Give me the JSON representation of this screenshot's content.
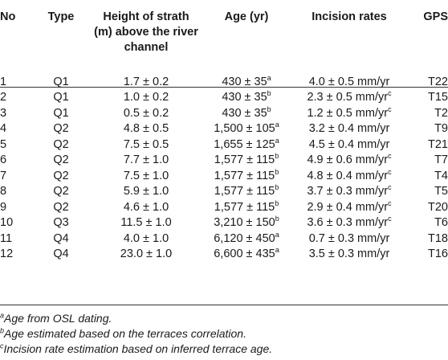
{
  "headers": {
    "no": "No",
    "type": "Type",
    "height": "Height of strath (m) above the river channel",
    "age": "Age (yr)",
    "incision": "Incision rates",
    "gps": "GPS"
  },
  "rows": [
    {
      "no": "1",
      "type": "Q1",
      "height": "1.7 ± 0.2",
      "age": "430 ± 35",
      "age_sup": "a",
      "incision": "4.0 ± 0.5 mm/yr",
      "inc_sup": "",
      "gps": "T22"
    },
    {
      "no": "2",
      "type": "Q1",
      "height": "1.0 ± 0.2",
      "age": "430 ± 35",
      "age_sup": "b",
      "incision": "2.3 ± 0.5 mm/yr",
      "inc_sup": "c",
      "gps": "T15"
    },
    {
      "no": "3",
      "type": "Q1",
      "height": "0.5 ± 0.2",
      "age": "430 ± 35",
      "age_sup": "b",
      "incision": "1.2 ± 0.5 mm/yr",
      "inc_sup": "c",
      "gps": "T2"
    },
    {
      "no": "4",
      "type": "Q2",
      "height": "4.8 ± 0.5",
      "age": "1,500 ± 105",
      "age_sup": "a",
      "incision": "3.2 ± 0.4 mm/yr",
      "inc_sup": "",
      "gps": "T9"
    },
    {
      "no": "5",
      "type": "Q2",
      "height": "7.5 ± 0.5",
      "age": "1,655 ± 125",
      "age_sup": "a",
      "incision": "4.5 ± 0.4 mm/yr",
      "inc_sup": "",
      "gps": "T21"
    },
    {
      "no": "6",
      "type": "Q2",
      "height": "7.7 ± 1.0",
      "age": "1,577 ± 115",
      "age_sup": "b",
      "incision": "4.9 ± 0.6 mm/yr",
      "inc_sup": "c",
      "gps": "T7"
    },
    {
      "no": "7",
      "type": "Q2",
      "height": "7.5 ± 1.0",
      "age": "1,577 ± 115",
      "age_sup": "b",
      "incision": "4.8 ± 0.4 mm/yr",
      "inc_sup": "c",
      "gps": "T4"
    },
    {
      "no": "8",
      "type": "Q2",
      "height": "5.9 ± 1.0",
      "age": "1,577 ± 115",
      "age_sup": "b",
      "incision": "3.7 ± 0.3 mm/yr",
      "inc_sup": "c",
      "gps": "T5"
    },
    {
      "no": "9",
      "type": "Q2",
      "height": "4.6 ± 1.0",
      "age": "1,577 ± 115",
      "age_sup": "b",
      "incision": "2.9 ± 0.4 mm/yr",
      "inc_sup": "c",
      "gps": "T20"
    },
    {
      "no": "10",
      "type": "Q3",
      "height": "11.5 ± 1.0",
      "age": "3,210 ± 150",
      "age_sup": "b",
      "incision": "3.6 ± 0.3 mm/yr",
      "inc_sup": "c",
      "gps": "T6"
    },
    {
      "no": "11",
      "type": "Q4",
      "height": "4.0 ± 1.0",
      "age": "6,120 ± 450",
      "age_sup": "a",
      "incision": "0.7 ± 0.3 mm/yr",
      "inc_sup": "",
      "gps": "T18"
    },
    {
      "no": "12",
      "type": "Q4",
      "height": "23.0 ± 1.0",
      "age": "6,600 ± 435",
      "age_sup": "a",
      "incision": "3.5 ± 0.3 mm/yr",
      "inc_sup": "",
      "gps": "T16"
    }
  ],
  "footnotes": [
    {
      "mark": "a",
      "text": "Age from OSL dating."
    },
    {
      "mark": "b",
      "text": "Age estimated based on the terraces correlation."
    },
    {
      "mark": "c",
      "text": "Incision rate estimation based on inferred terrace age."
    }
  ]
}
